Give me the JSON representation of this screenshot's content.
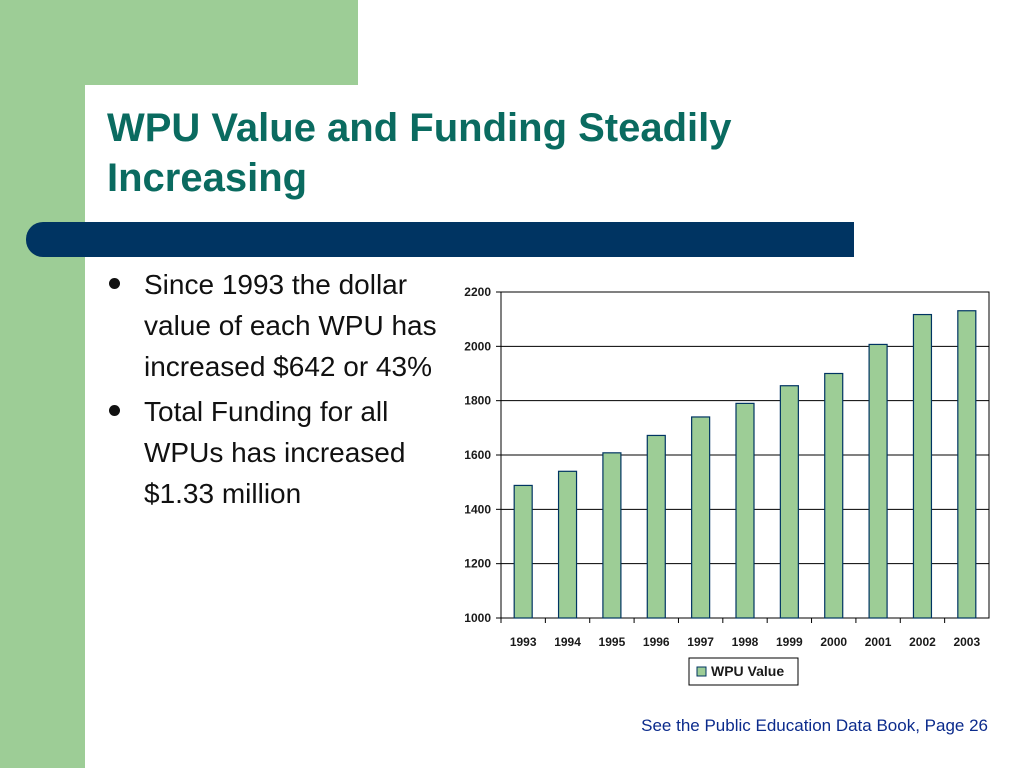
{
  "slide": {
    "title": "WPU Value and Funding Steadily Increasing",
    "bullets": [
      "Since 1993 the dollar value of each WPU has increased $642 or 43%",
      "Total Funding for all WPUs has increased $1.33 million"
    ],
    "footnote": "See the Public Education Data Book, Page 26"
  },
  "colors": {
    "title": "#0a6b60",
    "accent_green": "#9dcd96",
    "bar_navy": "#003462",
    "bar_fill": "#9dcd96"
  },
  "chart_data": {
    "type": "bar",
    "categories": [
      "1993",
      "1994",
      "1995",
      "1996",
      "1997",
      "1998",
      "1999",
      "2000",
      "2001",
      "2002",
      "2003"
    ],
    "series": [
      {
        "name": "WPU Value",
        "values": [
          1488,
          1540,
          1608,
          1672,
          1740,
          1790,
          1855,
          1900,
          2007,
          2117,
          2131
        ]
      }
    ],
    "ylim": [
      1000,
      2200
    ],
    "yticks": [
      1000,
      1200,
      1400,
      1600,
      1800,
      2000,
      2200
    ],
    "grid": true,
    "legend": "bottom-center"
  }
}
